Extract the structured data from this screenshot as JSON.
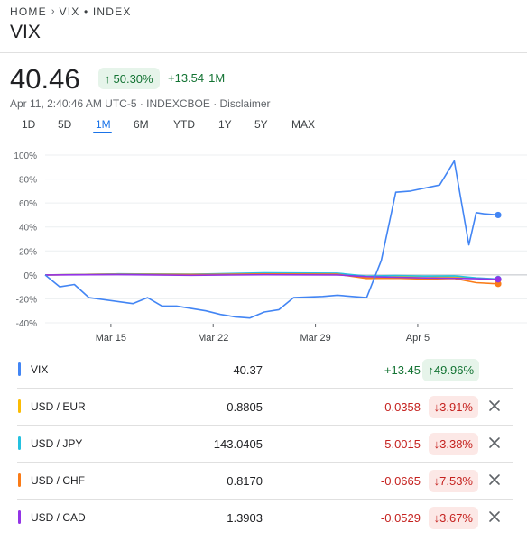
{
  "breadcrumb": {
    "home": "HOME",
    "current": "VIX • INDEX"
  },
  "title": "VIX",
  "quote": {
    "price": "40.46",
    "pct_change": "50.30%",
    "abs_change": "+13.54",
    "period": "1M",
    "meta": "Apr 11, 2:40:46 AM UTC-5 · INDEXCBOE · Disclaimer"
  },
  "ranges": [
    "1D",
    "5D",
    "1M",
    "6M",
    "YTD",
    "1Y",
    "5Y",
    "MAX"
  ],
  "active_range": "1M",
  "colors": {
    "VIX": "#4285f4",
    "USD / EUR": "#fbbc04",
    "USD / JPY": "#24c1e0",
    "USD / CHF": "#fa7b17",
    "USD / CAD": "#9334e6",
    "positive": "#137333",
    "negative": "#c5221f"
  },
  "chart_data": {
    "type": "line",
    "x_tick_labels": [
      "Mar 15",
      "Mar 22",
      "Mar 29",
      "Apr 5"
    ],
    "x_ticks": [
      4.5,
      11.5,
      18.5,
      25.5
    ],
    "y_tick_labels": [
      "100%",
      "80%",
      "60%",
      "40%",
      "20%",
      "0%",
      "-20%",
      "-40%"
    ],
    "ylim": [
      -40,
      100
    ],
    "xlim": [
      0,
      31
    ],
    "grid": true,
    "series": [
      {
        "name": "VIX",
        "x": [
          0,
          1,
          2,
          3,
          6,
          7,
          8,
          9,
          10,
          11,
          12,
          13,
          14,
          15,
          16,
          17,
          19,
          20,
          21,
          22,
          23,
          24,
          25,
          27,
          28,
          29,
          29.5,
          30,
          31
        ],
        "y": [
          0,
          -10,
          -8,
          -19,
          -24,
          -19,
          -26,
          -26,
          -28,
          -30,
          -33,
          -35,
          -36,
          -31,
          -29,
          -19,
          -18,
          -17,
          -18,
          -19,
          12,
          69,
          70,
          75,
          95,
          25,
          52,
          51,
          50
        ]
      },
      {
        "name": "USD / EUR",
        "x": [
          0,
          5,
          10,
          15,
          20,
          22,
          24,
          26,
          28,
          29.5,
          31
        ],
        "y": [
          0,
          0.8,
          0.6,
          1.2,
          1.0,
          -2.0,
          -1.5,
          -1.2,
          -2.0,
          -3.0,
          -3.9
        ]
      },
      {
        "name": "USD / JPY",
        "x": [
          0,
          5,
          10,
          15,
          20,
          22,
          24,
          26,
          28,
          29.5,
          31
        ],
        "y": [
          0,
          0.9,
          0.5,
          1.8,
          1.5,
          -1.0,
          -0.5,
          -1.0,
          -0.8,
          -2.5,
          -3.4
        ]
      },
      {
        "name": "USD / CHF",
        "x": [
          0,
          5,
          10,
          15,
          20,
          22,
          24,
          26,
          28,
          29.5,
          31
        ],
        "y": [
          0,
          0.5,
          0.3,
          0.8,
          0.6,
          -3.0,
          -2.8,
          -3.5,
          -3.0,
          -6.5,
          -7.5
        ]
      },
      {
        "name": "USD / CAD",
        "x": [
          0,
          5,
          10,
          15,
          20,
          22,
          24,
          26,
          28,
          29.5,
          31
        ],
        "y": [
          0,
          0.2,
          -0.3,
          0.1,
          0.0,
          -1.5,
          -2.0,
          -2.5,
          -2.8,
          -3.2,
          -3.7
        ]
      }
    ]
  },
  "comparisons": [
    {
      "name": "VIX",
      "value": "40.37",
      "change": "+13.45",
      "pct": "49.96%",
      "direction": "up",
      "removable": false
    },
    {
      "name": "USD / EUR",
      "value": "0.8805",
      "change": "-0.0358",
      "pct": "3.91%",
      "direction": "down",
      "removable": true
    },
    {
      "name": "USD / JPY",
      "value": "143.0405",
      "change": "-5.0015",
      "pct": "3.38%",
      "direction": "down",
      "removable": true
    },
    {
      "name": "USD / CHF",
      "value": "0.8170",
      "change": "-0.0665",
      "pct": "7.53%",
      "direction": "down",
      "removable": true
    },
    {
      "name": "USD / CAD",
      "value": "1.3903",
      "change": "-0.0529",
      "pct": "3.67%",
      "direction": "down",
      "removable": true
    }
  ]
}
